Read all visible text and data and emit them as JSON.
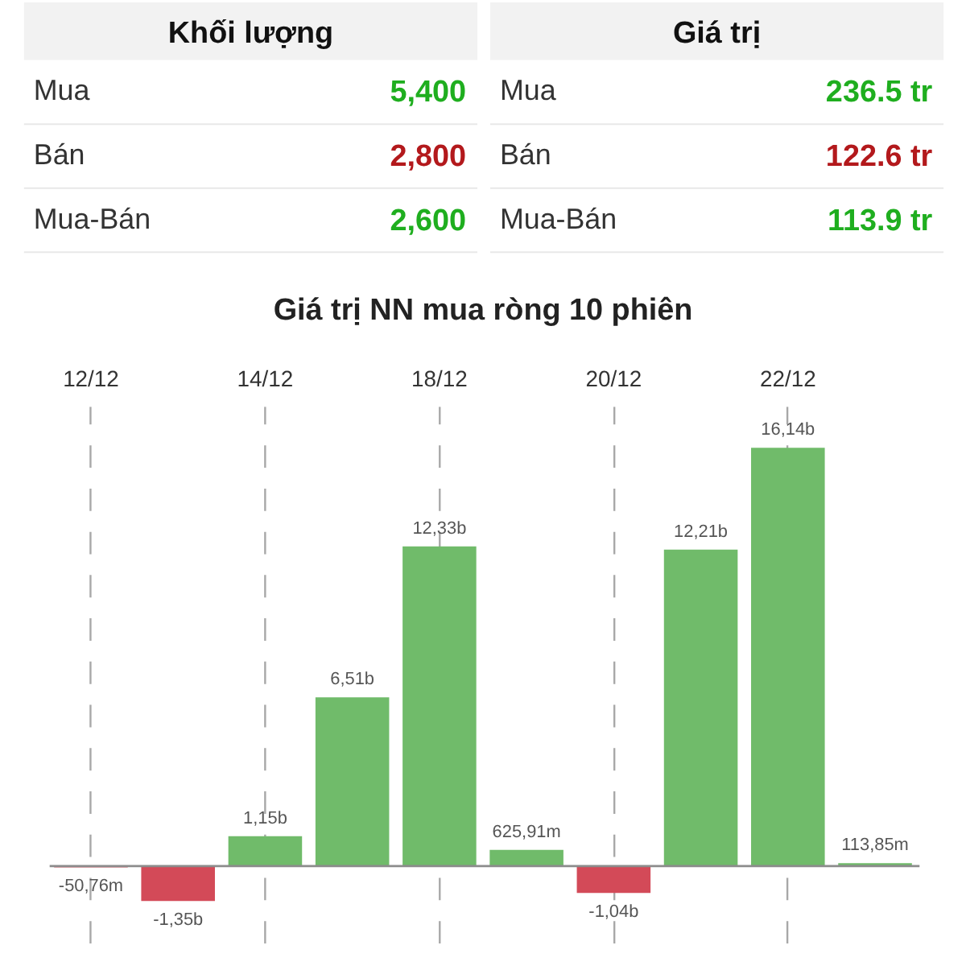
{
  "chart_data": [
    {
      "type": "other",
      "title": "Khối lượng",
      "categories": [
        "Mua",
        "Bán",
        "Mua-Bán"
      ],
      "value_labels": [
        "5,400",
        "2,800",
        "2,600"
      ],
      "colors": [
        "#1fae1f",
        "#b3191c",
        "#1fae1f"
      ]
    },
    {
      "type": "other",
      "title": "Giá trị",
      "categories": [
        "Mua",
        "Bán",
        "Mua-Bán"
      ],
      "value_labels": [
        "236.5 tr",
        "122.6 tr",
        "113.9 tr"
      ],
      "colors": [
        "#1fae1f",
        "#b3191c",
        "#1fae1f"
      ]
    },
    {
      "type": "bar",
      "title": "Giá trị NN mua ròng 10 phiên",
      "categories": [
        "12/12",
        null,
        "14/12",
        null,
        "18/12",
        null,
        "20/12",
        null,
        "22/12",
        null
      ],
      "values": [
        -50760000,
        -1350000000,
        1150000000,
        6510000000,
        12330000000,
        625910000,
        -1040000000,
        12210000000,
        16140000000,
        113850000
      ],
      "value_labels": [
        "-50,76m",
        "-1,35b",
        "1,15b",
        "6,51b",
        "12,33b",
        "625,91m",
        "-1,04b",
        "12,21b",
        "16,14b",
        "113,85m"
      ],
      "colors": [
        "#d34a58",
        "#d34a58",
        "#70bb6a",
        "#70bb6a",
        "#70bb6a",
        "#70bb6a",
        "#d34a58",
        "#70bb6a",
        "#70bb6a",
        "#70bb6a"
      ],
      "grid": "x",
      "ref_lines": [
        {
          "axis": "y",
          "value": 0,
          "color": "#8c8c8c"
        }
      ]
    }
  ]
}
